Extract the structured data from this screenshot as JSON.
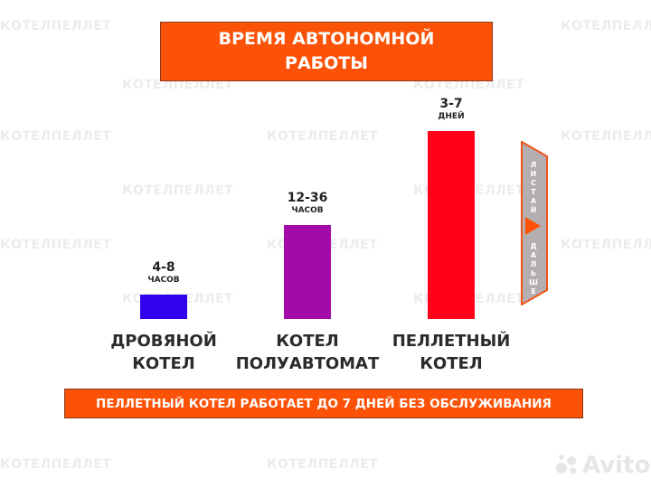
{
  "watermark": "КОТЕЛПЕЛЛЕТ",
  "title": [
    "ВРЕМЯ АВТОНОМНОЙ",
    "РАБОТЫ"
  ],
  "chart_data": {
    "type": "bar",
    "categories": [
      [
        "ДРОВЯНОЙ",
        "КОТЕЛ"
      ],
      [
        "КОТЕЛ",
        "ПОЛУАВТОМАТ"
      ],
      [
        "ПЕЛЛЕТНЫЙ",
        "КОТЕЛ"
      ]
    ],
    "value_labels": [
      {
        "range": "4-8",
        "unit": "ЧАСОВ"
      },
      {
        "range": "12-36",
        "unit": "ЧАСОВ"
      },
      {
        "range": "3-7",
        "unit": "ДНЕЙ"
      }
    ],
    "values": [
      13,
      50,
      100
    ],
    "ylim": [
      0,
      100
    ],
    "colors": [
      "#3300ee",
      "#a30aa8",
      "#ff0019"
    ],
    "grid": false,
    "axes": false
  },
  "banner": "ПЕЛЛЕТНЫЙ КОТЕЛ РАБОТАЕТ ДО 7 ДНЕЙ БЕЗ ОБСЛУЖИВАНИЯ",
  "swipe_tab": {
    "top": "ЛИСТАЙ",
    "bottom": "ДАЛЬШЕ",
    "icon": "play-arrow-icon"
  },
  "logo": "Avito",
  "colors": {
    "accent": "#fb5207",
    "tab_fill": "#b5aeb0",
    "text": "#2b2b2b"
  }
}
